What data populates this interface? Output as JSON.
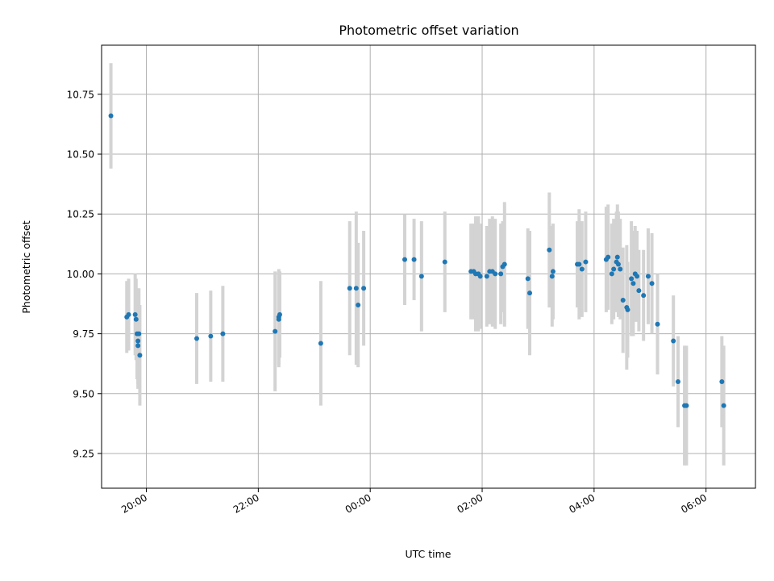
{
  "chart_data": {
    "type": "scatter",
    "title": "Photometric offset variation",
    "xlabel": "UTC time",
    "ylabel": "Photometric offset",
    "x_axis_format": "HH:MM",
    "xlim": [
      "19:12",
      "06:53"
    ],
    "ylim": [
      9.105,
      10.955
    ],
    "x_ticks": [
      "20:00",
      "22:00",
      "00:00",
      "02:00",
      "04:00",
      "06:00"
    ],
    "y_ticks": [
      9.25,
      9.5,
      9.75,
      10.0,
      10.25,
      10.5,
      10.75
    ],
    "y_tick_labels": [
      "9.25",
      "9.50",
      "9.75",
      "10.00",
      "10.25",
      "10.50",
      "10.75"
    ],
    "grid": true,
    "legend": "none",
    "colors": {
      "marker": "#1f77b4",
      "errorbar": "#d3d3d3",
      "grid": "#b0b0b0"
    },
    "series": [
      {
        "x_time": [
          "19:22",
          "19:39",
          "19:41",
          "19:48",
          "19:49",
          "19:50",
          "19:51",
          "19:51",
          "19:52",
          "19:53",
          "20:54",
          "21:09",
          "21:22",
          "22:18",
          "22:22",
          "22:22",
          "22:23",
          "23:07",
          "23:38",
          "23:45",
          "23:47",
          "23:53",
          "00:37",
          "00:47",
          "00:55",
          "01:20",
          "01:48",
          "01:51",
          "01:53",
          "01:56",
          "01:58",
          "02:05",
          "02:08",
          "02:11",
          "02:14",
          "02:20",
          "02:22",
          "02:24",
          "02:49",
          "02:51",
          "03:12",
          "03:15",
          "03:16",
          "03:42",
          "03:44",
          "03:47",
          "03:51",
          "04:13",
          "04:15",
          "04:19",
          "04:21",
          "04:24",
          "04:25",
          "04:26",
          "04:28",
          "04:31",
          "04:35",
          "04:36",
          "04:40",
          "04:42",
          "04:44",
          "04:46",
          "04:48",
          "04:53",
          "04:58",
          "05:02",
          "05:08",
          "05:25",
          "05:30",
          "05:37",
          "05:39",
          "06:17",
          "06:19"
        ],
        "y": [
          10.66,
          9.82,
          9.83,
          9.83,
          9.81,
          9.75,
          9.72,
          9.7,
          9.75,
          9.66,
          9.73,
          9.74,
          9.75,
          9.76,
          9.81,
          9.82,
          9.83,
          9.71,
          9.94,
          9.94,
          9.87,
          9.94,
          10.06,
          10.06,
          9.99,
          10.05,
          10.01,
          10.01,
          10.0,
          10.0,
          9.99,
          9.99,
          10.01,
          10.01,
          10.0,
          10.0,
          10.03,
          10.04,
          9.98,
          9.92,
          10.1,
          9.99,
          10.01,
          10.04,
          10.04,
          10.02,
          10.05,
          10.06,
          10.07,
          10.0,
          10.02,
          10.05,
          10.07,
          10.04,
          10.02,
          9.89,
          9.86,
          9.85,
          9.98,
          9.96,
          10.0,
          9.99,
          9.93,
          9.91,
          9.99,
          9.96,
          9.79,
          9.72,
          9.55,
          9.45,
          9.45,
          9.55,
          9.45
        ],
        "yerr": [
          0.22,
          0.15,
          0.15,
          0.17,
          0.17,
          0.19,
          0.18,
          0.18,
          0.19,
          0.21,
          0.19,
          0.19,
          0.2,
          0.25,
          0.2,
          0.2,
          0.18,
          0.26,
          0.28,
          0.32,
          0.26,
          0.24,
          0.19,
          0.17,
          0.23,
          0.21,
          0.2,
          0.2,
          0.24,
          0.24,
          0.22,
          0.21,
          0.22,
          0.23,
          0.23,
          0.21,
          0.19,
          0.26,
          0.21,
          0.26,
          0.24,
          0.21,
          0.2,
          0.18,
          0.23,
          0.2,
          0.21,
          0.22,
          0.22,
          0.21,
          0.21,
          0.21,
          0.22,
          0.22,
          0.21,
          0.22,
          0.26,
          0.2,
          0.24,
          0.22,
          0.2,
          0.19,
          0.17,
          0.19,
          0.2,
          0.21,
          0.21,
          0.19,
          0.19,
          0.25,
          0.25,
          0.19,
          0.25
        ]
      }
    ]
  }
}
